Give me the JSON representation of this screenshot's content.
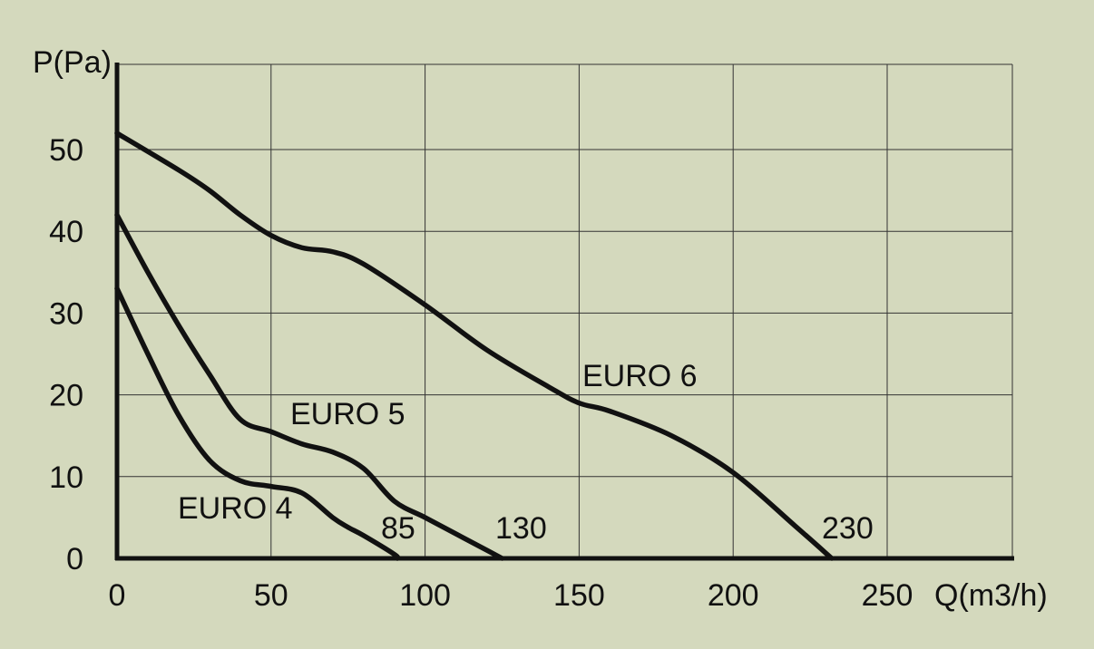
{
  "chart_data": {
    "type": "line",
    "title": "",
    "xlabel": "Q(m3/h)",
    "ylabel": "P(Pa)",
    "xlim": [
      0,
      290
    ],
    "ylim": [
      0,
      60
    ],
    "xticks": [
      "0",
      "50",
      "100",
      "150",
      "200",
      "250"
    ],
    "yticks": [
      "0",
      "10",
      "20",
      "30",
      "40",
      "50"
    ],
    "grid": true,
    "series": [
      {
        "name": "EURO 4",
        "end_label": "85",
        "x": [
          0,
          10,
          20,
          30,
          40,
          50,
          60,
          70,
          75,
          80,
          90,
          91
        ],
        "y": [
          33,
          25,
          17.5,
          12,
          9.5,
          8.8,
          8,
          5,
          3.8,
          2.8,
          0.5,
          0
        ]
      },
      {
        "name": "EURO 5",
        "end_label": "130",
        "x": [
          0,
          10,
          20,
          30,
          40,
          50,
          60,
          70,
          80,
          90,
          100,
          110,
          120,
          125
        ],
        "y": [
          42,
          35,
          28.5,
          22.5,
          17,
          15.5,
          14,
          13,
          11,
          7,
          5,
          3,
          1,
          0
        ]
      },
      {
        "name": "EURO 6",
        "end_label": "230",
        "x": [
          0,
          20,
          30,
          40,
          50,
          60,
          70,
          80,
          100,
          120,
          140,
          150,
          160,
          180,
          200,
          220,
          232
        ],
        "y": [
          52,
          47.5,
          45,
          42,
          39.5,
          38,
          37.5,
          36,
          31,
          25.5,
          21,
          19,
          18,
          15,
          10.5,
          4,
          0
        ]
      }
    ]
  }
}
